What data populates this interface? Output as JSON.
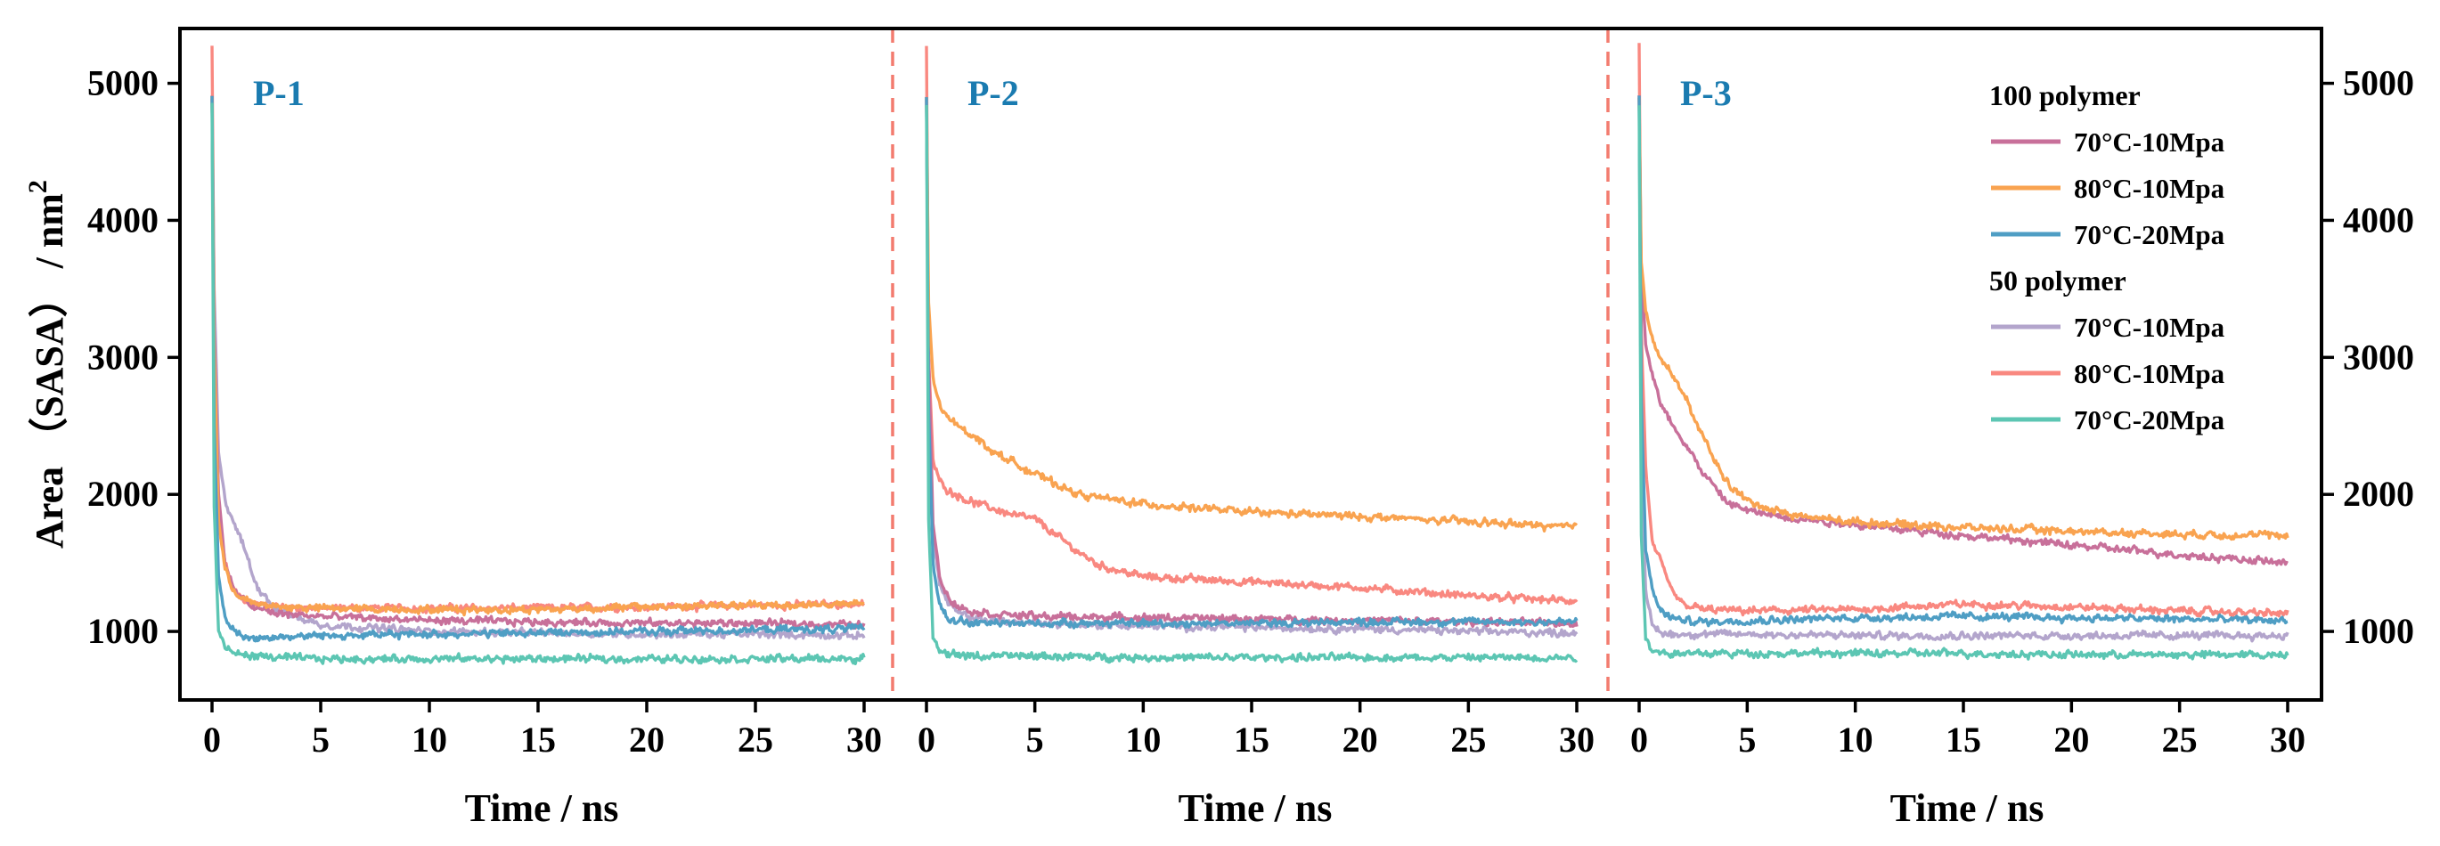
{
  "chart_data": {
    "type": "line",
    "ylabel_prefix": "Area （SASA） / nm",
    "ylabel_superscript": "2",
    "xlabel": "Time / ns",
    "xlim": [
      0,
      30
    ],
    "ylim": [
      500,
      5400
    ],
    "x_ticks": [
      0,
      5,
      10,
      15,
      20,
      25,
      30
    ],
    "y_ticks": [
      1000,
      2000,
      3000,
      4000,
      5000
    ],
    "panels": [
      {
        "label": "P-1"
      },
      {
        "label": "P-2"
      },
      {
        "label": "P-3"
      }
    ],
    "legend": {
      "groups": [
        {
          "title": "100 polymer",
          "entries": [
            {
              "series_id": "s100_70_10",
              "label": "70°C-10Mpa"
            },
            {
              "series_id": "s100_80_10",
              "label": "80°C-10Mpa"
            },
            {
              "series_id": "s100_70_20",
              "label": "70°C-20Mpa"
            }
          ]
        },
        {
          "title": "50 polymer",
          "entries": [
            {
              "series_id": "s50_70_10",
              "label": "70°C-10Mpa"
            },
            {
              "series_id": "s50_80_10",
              "label": "80°C-10Mpa"
            },
            {
              "series_id": "s50_70_20",
              "label": "70°C-20Mpa"
            }
          ]
        }
      ]
    },
    "series": [
      {
        "id": "s100_70_10",
        "group": "100 polymer",
        "name": "70°C-10Mpa",
        "color": "#c8709a",
        "panels": [
          {
            "x": [
              0,
              0.1,
              0.3,
              0.6,
              1,
              1.5,
              2,
              3,
              5,
              10,
              15,
              20,
              25,
              30
            ],
            "y": [
              4900,
              3200,
              2000,
              1500,
              1300,
              1220,
              1170,
              1130,
              1110,
              1080,
              1070,
              1060,
              1060,
              1050
            ]
          },
          {
            "x": [
              0,
              0.1,
              0.3,
              0.6,
              1,
              1.5,
              2,
              3,
              5,
              10,
              15,
              20,
              25,
              30
            ],
            "y": [
              4900,
              3000,
              1800,
              1400,
              1250,
              1180,
              1150,
              1130,
              1110,
              1100,
              1090,
              1080,
              1070,
              1060
            ]
          },
          {
            "x": [
              0,
              0.1,
              0.3,
              0.5,
              1,
              2,
              3,
              4,
              5,
              7,
              10,
              15,
              20,
              25,
              30
            ],
            "y": [
              4900,
              3600,
              3100,
              2950,
              2650,
              2400,
              2150,
              1950,
              1880,
              1830,
              1780,
              1700,
              1630,
              1560,
              1500
            ]
          }
        ]
      },
      {
        "id": "s100_80_10",
        "group": "100 polymer",
        "name": "80°C-10Mpa",
        "color": "#f9a350",
        "panels": [
          {
            "x": [
              0,
              0.1,
              0.3,
              0.6,
              1,
              1.5,
              2,
              3,
              5,
              10,
              15,
              20,
              25,
              30
            ],
            "y": [
              4900,
              3100,
              1800,
              1450,
              1300,
              1230,
              1200,
              1180,
              1170,
              1160,
              1160,
              1180,
              1190,
              1200
            ]
          },
          {
            "x": [
              0,
              0.1,
              0.3,
              0.6,
              1,
              2,
              3,
              5,
              7,
              10,
              15,
              20,
              25,
              30
            ],
            "y": [
              4900,
              3400,
              2850,
              2650,
              2550,
              2450,
              2320,
              2150,
              2000,
              1930,
              1870,
              1840,
              1800,
              1760
            ]
          },
          {
            "x": [
              0,
              0.1,
              0.3,
              0.5,
              1,
              2,
              3,
              4,
              5,
              7,
              10,
              15,
              20,
              25,
              30
            ],
            "y": [
              4900,
              3700,
              3350,
              3200,
              3000,
              2750,
              2400,
              2100,
              1950,
              1850,
              1800,
              1760,
              1730,
              1710,
              1700
            ]
          }
        ]
      },
      {
        "id": "s100_70_20",
        "group": "100 polymer",
        "name": "70°C-20Mpa",
        "color": "#4f9ec4",
        "panels": [
          {
            "x": [
              0,
              0.1,
              0.3,
              0.6,
              1,
              1.5,
              2,
              3,
              5,
              10,
              15,
              20,
              25,
              30
            ],
            "y": [
              4900,
              2500,
              1400,
              1100,
              1000,
              960,
              950,
              960,
              970,
              980,
              990,
              1000,
              1010,
              1020
            ]
          },
          {
            "x": [
              0,
              0.1,
              0.3,
              0.6,
              1,
              1.5,
              2,
              3,
              5,
              10,
              15,
              20,
              25,
              30
            ],
            "y": [
              4900,
              2600,
              1500,
              1200,
              1100,
              1080,
              1060,
              1060,
              1060,
              1060,
              1060,
              1070,
              1070,
              1070
            ]
          },
          {
            "x": [
              0,
              0.1,
              0.3,
              0.6,
              1,
              1.5,
              2,
              3,
              5,
              10,
              15,
              20,
              25,
              30
            ],
            "y": [
              4900,
              2700,
              1600,
              1300,
              1150,
              1100,
              1080,
              1070,
              1080,
              1100,
              1110,
              1100,
              1090,
              1080
            ]
          }
        ]
      },
      {
        "id": "s50_70_10",
        "group": "50 polymer",
        "name": "70°C-10Mpa",
        "color": "#b3a5cc",
        "panels": [
          {
            "x": [
              0,
              0.1,
              0.3,
              0.6,
              1,
              1.5,
              2,
              3,
              5,
              10,
              15,
              20,
              25,
              30
            ],
            "y": [
              4900,
              3500,
              2300,
              1950,
              1800,
              1600,
              1350,
              1150,
              1050,
              1000,
              990,
              980,
              980,
              970
            ]
          },
          {
            "x": [
              0,
              0.1,
              0.3,
              0.6,
              1,
              1.5,
              2,
              3,
              5,
              10,
              15,
              20,
              25,
              30
            ],
            "y": [
              4900,
              2800,
              1700,
              1350,
              1200,
              1130,
              1100,
              1080,
              1060,
              1040,
              1030,
              1020,
              1000,
              990
            ]
          },
          {
            "x": [
              0,
              0.1,
              0.3,
              0.6,
              1,
              1.5,
              2,
              3,
              5,
              10,
              15,
              20,
              25,
              30
            ],
            "y": [
              4900,
              2200,
              1300,
              1050,
              990,
              980,
              980,
              980,
              980,
              970,
              970,
              970,
              970,
              970
            ]
          }
        ]
      },
      {
        "id": "s50_80_10",
        "group": "50 polymer",
        "name": "80°C-10Mpa",
        "color": "#f98880",
        "panels": [
          {
            "x": [
              0,
              0.1,
              0.3,
              0.6,
              1,
              1.5,
              2,
              3,
              5,
              10,
              15,
              20,
              25,
              30
            ],
            "y": [
              5280,
              3300,
              1900,
              1500,
              1300,
              1230,
              1200,
              1180,
              1170,
              1170,
              1170,
              1180,
              1190,
              1200
            ]
          },
          {
            "x": [
              0,
              0.1,
              0.3,
              0.6,
              1,
              2,
              3,
              4,
              5,
              6,
              7,
              8,
              10,
              15,
              20,
              25,
              30
            ],
            "y": [
              5280,
              3000,
              2250,
              2100,
              2030,
              1950,
              1900,
              1850,
              1820,
              1700,
              1580,
              1480,
              1400,
              1360,
              1320,
              1260,
              1220
            ]
          },
          {
            "x": [
              0,
              0.1,
              0.3,
              0.6,
              1,
              1.5,
              2,
              3,
              5,
              10,
              15,
              20,
              25,
              30
            ],
            "y": [
              5280,
              3200,
              2200,
              1650,
              1500,
              1300,
              1200,
              1160,
              1150,
              1160,
              1200,
              1180,
              1150,
              1130
            ]
          }
        ]
      },
      {
        "id": "s50_70_20",
        "group": "50 polymer",
        "name": "70°C-20Mpa",
        "color": "#5cc6b3",
        "panels": [
          {
            "x": [
              0,
              0.1,
              0.3,
              0.6,
              1,
              1.5,
              2,
              3,
              5,
              10,
              15,
              20,
              25,
              30
            ],
            "y": [
              4850,
              1900,
              1000,
              880,
              840,
              830,
              820,
              810,
              800,
              800,
              800,
              800,
              800,
              800
            ]
          },
          {
            "x": [
              0,
              0.1,
              0.3,
              0.6,
              1,
              1.5,
              2,
              3,
              5,
              10,
              15,
              20,
              25,
              30
            ],
            "y": [
              4850,
              1800,
              950,
              870,
              840,
              830,
              820,
              820,
              820,
              810,
              810,
              810,
              810,
              810
            ]
          },
          {
            "x": [
              0,
              0.1,
              0.3,
              0.6,
              1,
              1.5,
              2,
              3,
              5,
              10,
              15,
              20,
              25,
              30
            ],
            "y": [
              4850,
              1700,
              950,
              870,
              850,
              840,
              840,
              840,
              840,
              840,
              840,
              830,
              830,
              830
            ]
          }
        ]
      }
    ],
    "panel_separator_color": "#f37b6f"
  }
}
